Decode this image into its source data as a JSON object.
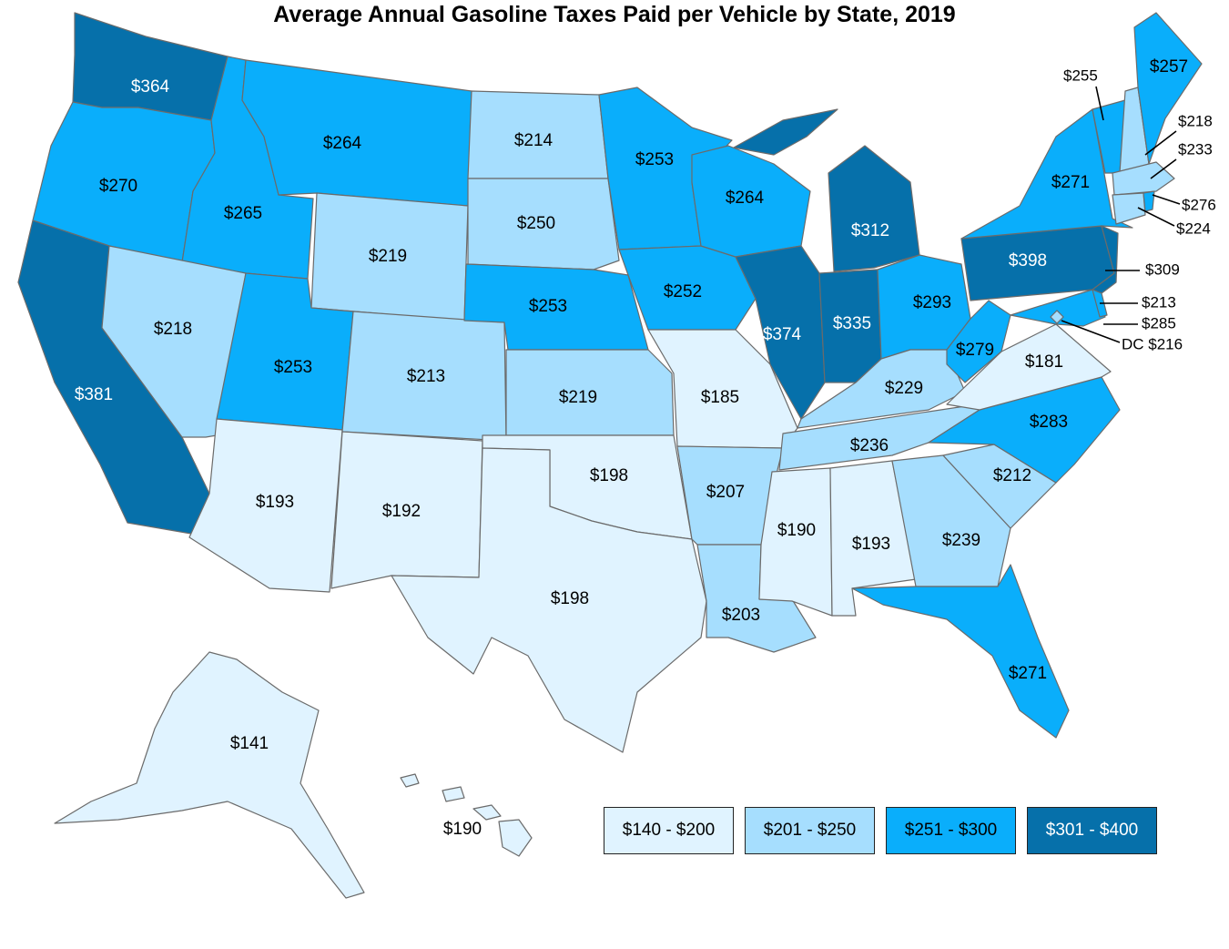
{
  "title": "Average Annual Gasoline Taxes Paid per Vehicle by State, 2019",
  "colors": {
    "bin1": "#e0f3ff",
    "bin2": "#a6defe",
    "bin3": "#0aaefb",
    "bin4": "#0670aa",
    "border": "#6b6b6b"
  },
  "legend": [
    {
      "label": "$140 - $200",
      "color": "#e0f3ff",
      "text_color": "#000000"
    },
    {
      "label": "$201 - $250",
      "color": "#a6defe",
      "text_color": "#000000"
    },
    {
      "label": "$251 - $300",
      "color": "#0aaefb",
      "text_color": "#000000"
    },
    {
      "label": "$301 - $400",
      "color": "#0670aa",
      "text_color": "#ffffff"
    }
  ],
  "states": {
    "WA": {
      "value": "$364"
    },
    "OR": {
      "value": "$270"
    },
    "CA": {
      "value": "$381"
    },
    "ID": {
      "value": "$265"
    },
    "NV": {
      "value": "$218"
    },
    "MT": {
      "value": "$264"
    },
    "WY": {
      "value": "$219"
    },
    "UT": {
      "value": "$253"
    },
    "AZ": {
      "value": "$193"
    },
    "CO": {
      "value": "$213"
    },
    "NM": {
      "value": "$192"
    },
    "ND": {
      "value": "$214"
    },
    "SD": {
      "value": "$250"
    },
    "NE": {
      "value": "$253"
    },
    "KS": {
      "value": "$219"
    },
    "OK": {
      "value": "$198"
    },
    "TX": {
      "value": "$198"
    },
    "MN": {
      "value": "$253"
    },
    "IA": {
      "value": "$252"
    },
    "MO": {
      "value": "$185"
    },
    "AR": {
      "value": "$207"
    },
    "LA": {
      "value": "$203"
    },
    "WI": {
      "value": "$264"
    },
    "IL": {
      "value": "$374"
    },
    "MI": {
      "value": "$312"
    },
    "IN": {
      "value": "$335"
    },
    "OH": {
      "value": "$293"
    },
    "KY": {
      "value": "$229"
    },
    "TN": {
      "value": "$236"
    },
    "MS": {
      "value": "$190"
    },
    "AL": {
      "value": "$193"
    },
    "GA": {
      "value": "$239"
    },
    "FL": {
      "value": "$271"
    },
    "SC": {
      "value": "$212"
    },
    "NC": {
      "value": "$283"
    },
    "VA": {
      "value": "$181"
    },
    "WV": {
      "value": "$279"
    },
    "PA": {
      "value": "$398"
    },
    "NY": {
      "value": "$271"
    },
    "VT": {
      "value": "$255"
    },
    "NH": {
      "value": "$218"
    },
    "ME": {
      "value": "$257"
    },
    "MA": {
      "value": "$233"
    },
    "RI": {
      "value": "$276"
    },
    "CT": {
      "value": "$224"
    },
    "NJ": {
      "value": "$309"
    },
    "DE": {
      "value": "$213"
    },
    "MD": {
      "value": "$285"
    },
    "DC": {
      "value": "DC $216"
    },
    "AK": {
      "value": "$141"
    },
    "HI": {
      "value": "$190"
    }
  }
}
